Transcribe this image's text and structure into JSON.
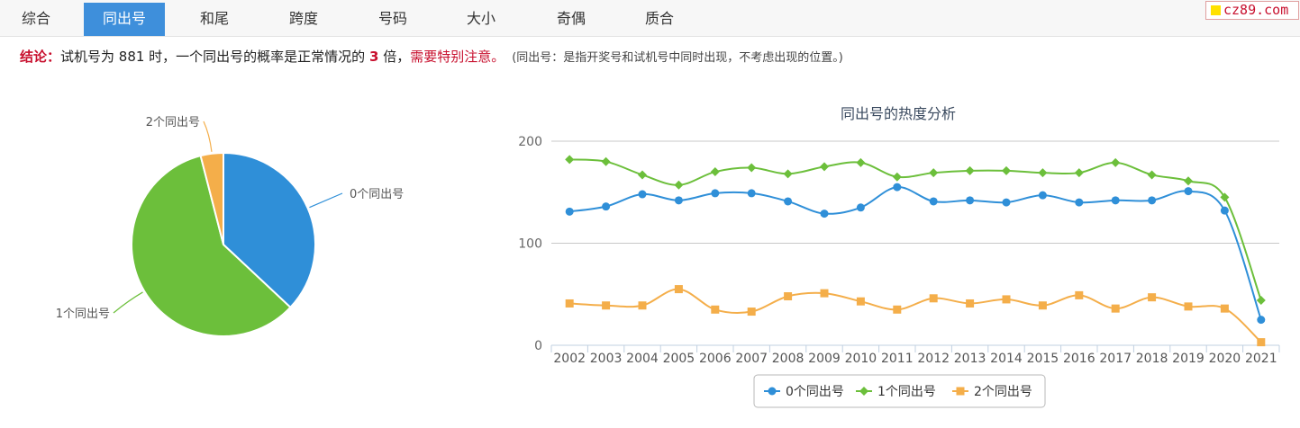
{
  "tabs": [
    {
      "label": "综合",
      "active": false
    },
    {
      "label": "同出号",
      "active": true
    },
    {
      "label": "和尾",
      "active": false
    },
    {
      "label": "跨度",
      "active": false
    },
    {
      "label": "号码",
      "active": false
    },
    {
      "label": "大小",
      "active": false
    },
    {
      "label": "奇偶",
      "active": false
    },
    {
      "label": "质合",
      "active": false
    }
  ],
  "brand": {
    "text": "cz89.com"
  },
  "conclusion": {
    "label": "结论：",
    "pre": "试机号为 881 时，一个同出号的概率是正常情况的",
    "times": "3",
    "post": "倍，",
    "warning": "需要特别注意。",
    "note": "(同出号：是指开奖号和试机号中同时出现，不考虑出现的位置。)"
  },
  "colors": {
    "accent": "#3e8fdb",
    "highlight": "#c8102e"
  },
  "chart_data": [
    {
      "type": "pie",
      "labels": [
        "0个同出号",
        "1个同出号",
        "2个同出号"
      ],
      "values": [
        37,
        59,
        4
      ],
      "colors": [
        "#2f8fd8",
        "#6cbf3b",
        "#f4ae4a"
      ]
    },
    {
      "type": "line",
      "title": "同出号的热度分析",
      "categories": [
        "2002",
        "2003",
        "2004",
        "2005",
        "2006",
        "2007",
        "2008",
        "2009",
        "2010",
        "2011",
        "2012",
        "2013",
        "2014",
        "2015",
        "2016",
        "2017",
        "2018",
        "2019",
        "2020",
        "2021"
      ],
      "ylim": [
        0,
        200
      ],
      "yticks": [
        0,
        100,
        200
      ],
      "grid": true,
      "legend_position": "bottom",
      "series": [
        {
          "name": "0个同出号",
          "color": "#2f8fd8",
          "marker": "circle",
          "values": [
            131,
            136,
            148,
            142,
            149,
            149,
            141,
            129,
            135,
            155,
            141,
            142,
            140,
            147,
            140,
            142,
            142,
            151,
            132,
            25
          ]
        },
        {
          "name": "1个同出号",
          "color": "#6cbf3b",
          "marker": "diamond",
          "values": [
            182,
            180,
            167,
            157,
            170,
            174,
            168,
            175,
            179,
            165,
            169,
            171,
            171,
            169,
            169,
            179,
            167,
            161,
            145,
            44
          ]
        },
        {
          "name": "2个同出号",
          "color": "#f4ae4a",
          "marker": "square",
          "values": [
            41,
            39,
            39,
            55,
            35,
            33,
            48,
            51,
            43,
            35,
            46,
            41,
            45,
            39,
            49,
            36,
            47,
            38,
            36,
            3
          ]
        }
      ]
    }
  ]
}
